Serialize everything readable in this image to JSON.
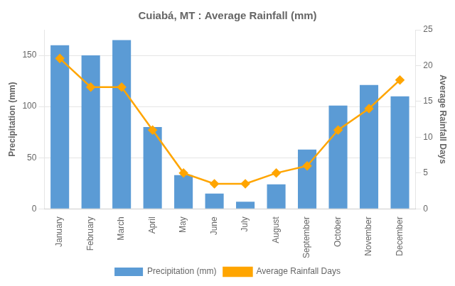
{
  "chart_data": {
    "type": "bar",
    "title": "Cuiabá, MT : Average Rainfall (mm)",
    "categories": [
      "January",
      "February",
      "March",
      "April",
      "May",
      "June",
      "July",
      "August",
      "September",
      "October",
      "November",
      "December"
    ],
    "series": [
      {
        "name": "Precipitation (mm)",
        "type": "bar",
        "color": "#5B9BD5",
        "values": [
          160,
          150,
          165,
          80,
          33,
          15,
          7,
          24,
          58,
          101,
          121,
          110
        ]
      },
      {
        "name": "Average Rainfall Days",
        "type": "line",
        "color": "#FFA500",
        "marker": "diamond",
        "axis": "y2",
        "values": [
          21,
          17,
          17,
          11,
          5,
          3.5,
          3.5,
          5,
          6,
          11,
          14,
          18
        ]
      }
    ],
    "ylabel": "Precipitation (mm)",
    "y2label": "Average Rainfall Days",
    "ylim": [
      0,
      175
    ],
    "yticks": [
      0,
      50,
      100,
      150
    ],
    "y2lim": [
      0,
      25
    ],
    "y2ticks": [
      0,
      5,
      10,
      15,
      20,
      25
    ],
    "grid": true,
    "legend": "bottom"
  }
}
